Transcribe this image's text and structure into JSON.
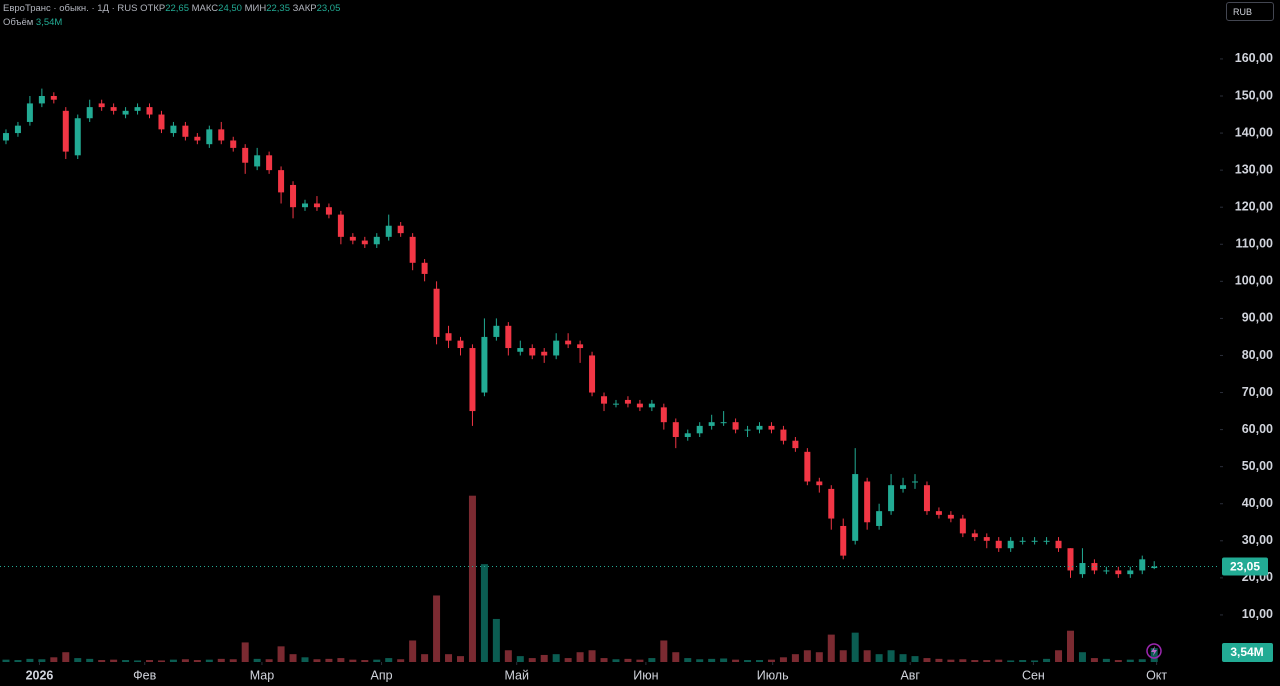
{
  "header": {
    "name": "ЕвроТранс · обыкн. · 1Д · RUS",
    "open": "ОТКР",
    "high": "МАКС",
    "low": "МИН",
    "close": "ЗАКР",
    "volume": "Объём",
    "currency": "RUB"
  },
  "chart_data": {
    "type": "candlestick",
    "open": [
      138,
      140,
      143,
      148,
      150,
      146,
      134,
      144,
      148,
      147,
      145,
      146,
      147,
      145,
      140,
      142,
      139,
      137,
      141,
      138,
      136,
      131,
      134,
      130,
      126,
      120,
      121,
      120,
      118,
      112,
      111,
      110,
      112,
      115,
      112,
      105,
      98,
      86,
      84,
      82,
      70,
      85,
      88,
      81,
      82,
      81,
      80,
      84,
      83,
      80,
      69,
      67,
      68,
      67,
      66,
      66,
      62,
      58,
      59,
      61,
      62,
      62,
      60,
      60,
      61,
      60,
      57,
      54,
      46,
      44,
      34,
      30,
      46,
      34,
      38,
      44,
      46,
      45,
      38,
      37,
      36,
      32,
      31,
      30,
      28,
      30,
      30,
      30,
      30,
      28,
      21,
      24,
      22,
      22,
      21,
      22,
      22.65
    ],
    "high": [
      141,
      143,
      150,
      152,
      151,
      147,
      145,
      149,
      149,
      148,
      147,
      148,
      148,
      146,
      143,
      143,
      140,
      142,
      143,
      139,
      137,
      136,
      135,
      131,
      127,
      122,
      123,
      121,
      119,
      113,
      112,
      113,
      118,
      116,
      113,
      106,
      100,
      88,
      85,
      83,
      90,
      90,
      89,
      84,
      83,
      82,
      86,
      86,
      84,
      81,
      70,
      68,
      69,
      68,
      68,
      67,
      63,
      60,
      62,
      64,
      65,
      63,
      61,
      62,
      62,
      61,
      58,
      55,
      47,
      45,
      36,
      55,
      47,
      40,
      48,
      47,
      48,
      46,
      39,
      38,
      37,
      33,
      32,
      31,
      31,
      31,
      31,
      31,
      31,
      28,
      28,
      25,
      23,
      23,
      23,
      26,
      24.5
    ],
    "low": [
      137,
      139,
      142,
      147,
      148,
      133,
      133,
      143,
      146,
      145,
      144,
      145,
      144,
      140,
      139,
      138,
      137,
      136,
      137,
      135,
      129,
      130,
      129,
      121,
      117,
      119,
      119,
      117,
      110,
      110,
      109,
      109,
      111,
      112,
      103,
      100,
      83,
      82,
      80,
      61,
      69,
      84,
      80,
      80,
      79,
      78,
      79,
      82,
      78,
      69,
      65,
      66,
      66,
      65,
      65,
      60,
      55,
      57,
      58,
      60,
      61,
      59,
      58,
      59,
      59,
      56,
      54,
      45,
      43,
      33,
      25,
      29,
      33,
      33,
      37,
      43,
      44,
      37,
      36,
      35,
      31,
      30,
      28,
      27,
      27,
      29,
      29,
      29,
      27,
      20,
      20,
      21,
      21,
      20,
      20,
      21,
      22.35
    ],
    "close": [
      140,
      142,
      148,
      150,
      149,
      135,
      144,
      147,
      147,
      146,
      146,
      147,
      145,
      141,
      142,
      139,
      138,
      141,
      138,
      136,
      132,
      134,
      130,
      124,
      120,
      121,
      120,
      118,
      112,
      111,
      110,
      112,
      115,
      113,
      105,
      102,
      85,
      84,
      82,
      65,
      85,
      88,
      82,
      82,
      80,
      80,
      84,
      83,
      82,
      70,
      67,
      67,
      67,
      66,
      67,
      62,
      58,
      59,
      61,
      62,
      62,
      60,
      60,
      61,
      60,
      57,
      55,
      46,
      45,
      36,
      26,
      48,
      35,
      38,
      45,
      45,
      46,
      38,
      37,
      36,
      32,
      31,
      30,
      28,
      30,
      30,
      30,
      30,
      28,
      22,
      24,
      22,
      22,
      21,
      22,
      25,
      23.05
    ],
    "volume": [
      0.6,
      0.5,
      0.8,
      0.7,
      1.2,
      2.5,
      1.0,
      0.8,
      0.5,
      0.6,
      0.5,
      0.4,
      0.5,
      0.4,
      0.6,
      0.7,
      0.5,
      0.6,
      0.8,
      0.7,
      5.0,
      0.8,
      0.7,
      4.0,
      2.0,
      1.2,
      0.7,
      0.8,
      1.0,
      0.6,
      0.5,
      0.6,
      1.0,
      0.7,
      5.5,
      2.0,
      17.0,
      2.0,
      1.5,
      42.5,
      25.0,
      11.0,
      3.0,
      1.5,
      1.0,
      1.8,
      2.0,
      1.0,
      2.5,
      3.0,
      1.0,
      0.7,
      0.8,
      0.6,
      1.0,
      5.5,
      2.5,
      1.0,
      0.7,
      0.8,
      0.9,
      0.6,
      0.5,
      0.5,
      0.6,
      1.2,
      2.0,
      3.0,
      2.5,
      7.0,
      3.0,
      7.5,
      3.0,
      2.0,
      3.0,
      2.0,
      1.5,
      1.0,
      0.8,
      0.6,
      0.7,
      0.5,
      0.5,
      0.6,
      0.4,
      0.5,
      0.4,
      0.8,
      3.0,
      8.0,
      2.5,
      1.0,
      0.8,
      0.5,
      0.6,
      0.7,
      3.54
    ],
    "last_labels": {
      "open": "22,65",
      "high": "24,50",
      "low": "22,35",
      "close": "23,05",
      "volume": "3,54M"
    },
    "xlim": [
      -0.5,
      101.5
    ],
    "xticks": [
      {
        "value": 2.8,
        "label": "2026"
      },
      {
        "value": 11.6,
        "label": "Фев"
      },
      {
        "value": 21.4,
        "label": "Мар"
      },
      {
        "value": 31.4,
        "label": "Апр"
      },
      {
        "value": 42.7,
        "label": "Май"
      },
      {
        "value": 53.5,
        "label": "Июн"
      },
      {
        "value": 64.1,
        "label": "Июль"
      },
      {
        "value": 75.6,
        "label": "Авг"
      },
      {
        "value": 85.9,
        "label": "Сен"
      },
      {
        "value": 96.2,
        "label": "Окт"
      }
    ],
    "ylim": [
      -2.7,
      175.9
    ],
    "yticks": [
      {
        "value": 10,
        "label": "10,00"
      },
      {
        "value": 20,
        "label": "20,00"
      },
      {
        "value": 30,
        "label": "30,00"
      },
      {
        "value": 40,
        "label": "40,00"
      },
      {
        "value": 50,
        "label": "50,00"
      },
      {
        "value": 60,
        "label": "60,00"
      },
      {
        "value": 70,
        "label": "70,00"
      },
      {
        "value": 80,
        "label": "80,00"
      },
      {
        "value": 90,
        "label": "90,00"
      },
      {
        "value": 100,
        "label": "100,00"
      },
      {
        "value": 110,
        "label": "110,00"
      },
      {
        "value": 120,
        "label": "120,00"
      },
      {
        "value": 130,
        "label": "130,00"
      },
      {
        "value": 140,
        "label": "140,00"
      },
      {
        "value": 150,
        "label": "150,00"
      },
      {
        "value": 160,
        "label": "160,00"
      }
    ],
    "volume_lim": [
      0,
      46
    ],
    "up_color": "#22ab94",
    "down_color": "#f23645",
    "volume_up_color": "#0b5d52",
    "volume_down_color": "#7b2a31"
  }
}
